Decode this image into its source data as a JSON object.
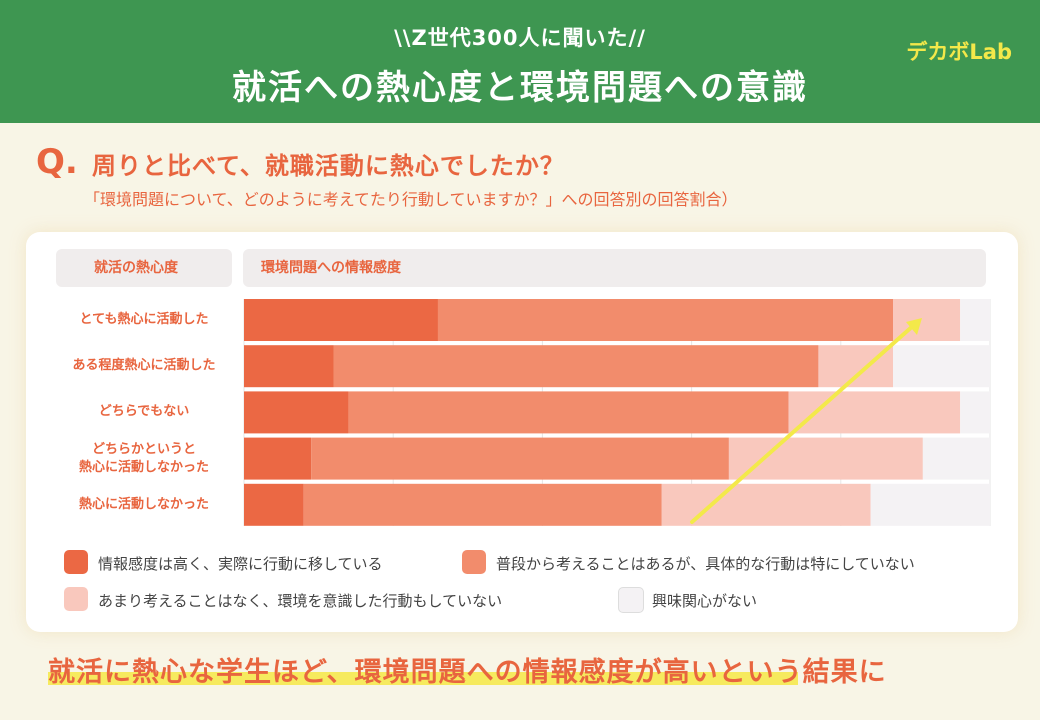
{
  "header": {
    "subtitle": "\\\\Z世代300人に聞いた//",
    "title": "就活への熱心度と環境問題への意識",
    "logo": "デカボLab"
  },
  "question": {
    "mark": "Q.",
    "text": "周りと比べて、就職活動に熱心でしたか？",
    "note": "「環境問題について、どのように考えてたり行動していますか？」への回答別の回答割合）"
  },
  "columns": {
    "left": "就活の熱心度",
    "right": "環境問題への情報感度"
  },
  "footer": {
    "text": "就活に熱心な学生ほど、環境問題への情報感度が高いという結果に"
  },
  "colors": {
    "s1": "#eb6844",
    "s2": "#f28c6c",
    "s3": "#f9c8bd",
    "s4": "#f4f2f4",
    "arrow": "#f3e94a",
    "accent": "#e8653f",
    "header": "#3e9651"
  },
  "chart_data": {
    "type": "bar",
    "orientation": "horizontal",
    "stacked": true,
    "normalized": true,
    "xlim": [
      0,
      100
    ],
    "grid": true,
    "legend_position": "bottom",
    "categories": [
      "とても熱心に活動した",
      "ある程度熱心に活動した",
      "どちらでもない",
      "どちらかというと\n熱心に活動しなかった",
      "熱心に活動しなかった"
    ],
    "series": [
      {
        "name": "情報感度は高く、実際に行動に移している",
        "values": [
          26,
          12,
          14,
          9,
          8
        ]
      },
      {
        "name": "普段から考えることはあるが、具体的な行動は特にしていない",
        "values": [
          61,
          65,
          59,
          56,
          48
        ]
      },
      {
        "name": "あまり考えることはなく、環境を意識した行動もしていない",
        "values": [
          9,
          10,
          23,
          26,
          28
        ]
      },
      {
        "name": "興味関心がない",
        "values": [
          4,
          13,
          4,
          9,
          16
        ]
      }
    ],
    "annotations": [
      {
        "type": "arrow",
        "description": "trend arrow"
      }
    ]
  }
}
